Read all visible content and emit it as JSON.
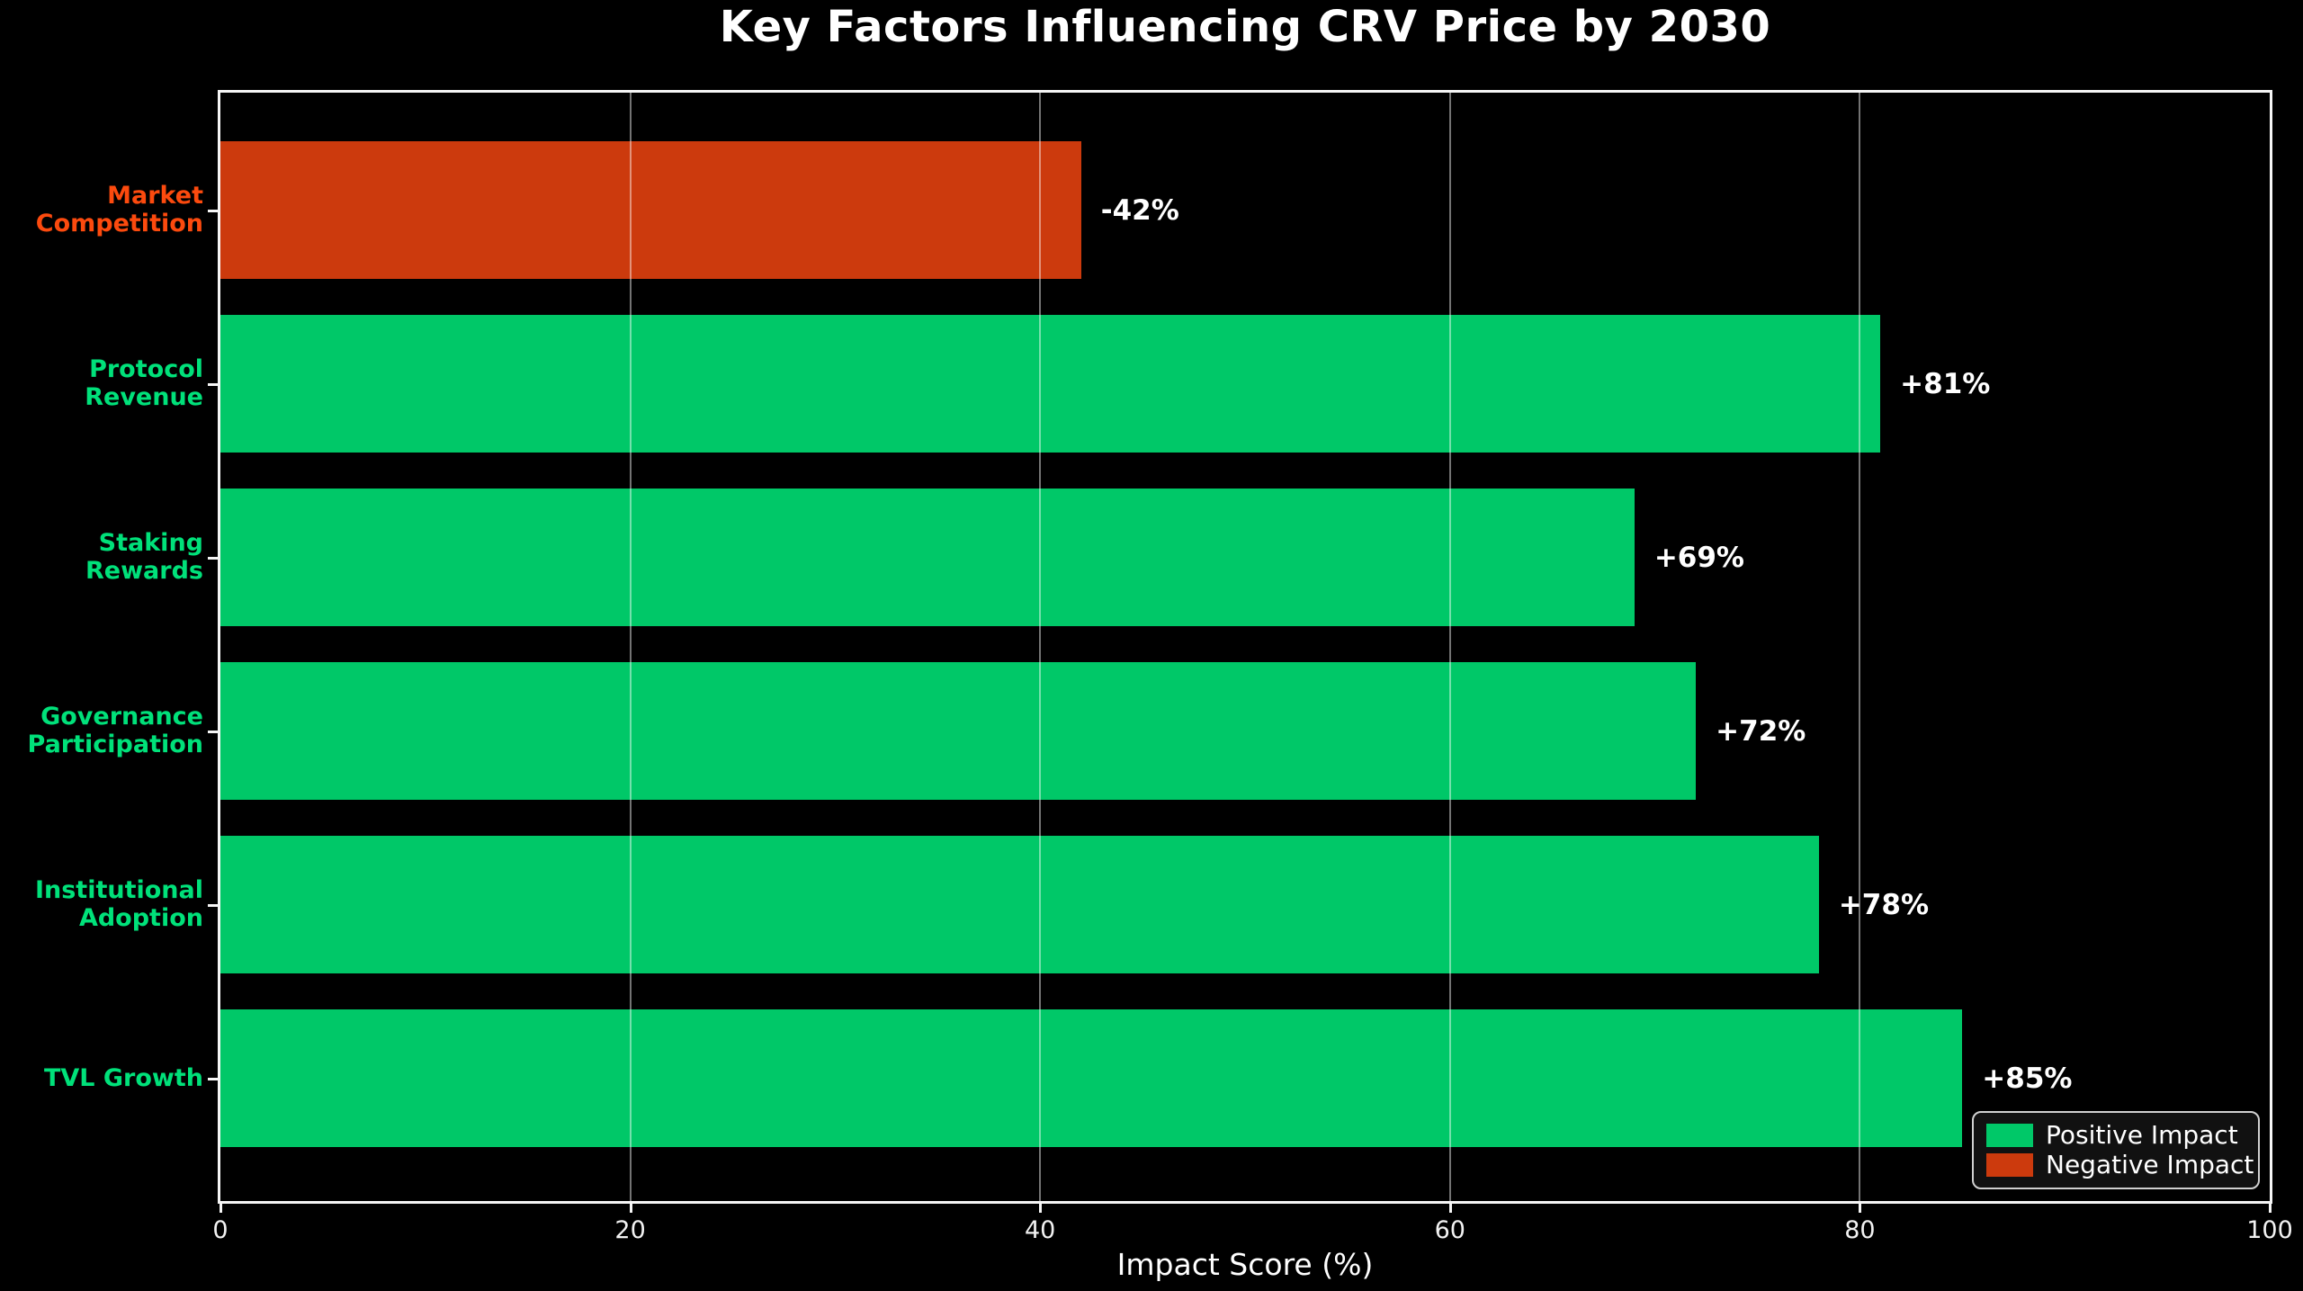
{
  "title": "Key Factors Influencing CRV Price by 2030",
  "colors": {
    "background": "#000000",
    "positive_bar": "#00c868",
    "negative_bar": "#cc3a0d",
    "positive_label": "#00e17a",
    "negative_label": "#fc4a0e",
    "value_label": "#ffffff",
    "spine": "#f5f5f5",
    "grid": "rgba(255,255,255,0.45)",
    "tick_label": "#f2f2f2"
  },
  "chart_data": {
    "type": "bar",
    "orientation": "horizontal",
    "title": "Key Factors Influencing CRV Price by 2030",
    "xlabel": "Impact Score (%)",
    "ylabel": "",
    "xlim": [
      0,
      100
    ],
    "xticks": [
      0,
      20,
      40,
      60,
      80,
      100
    ],
    "grid": true,
    "legend_position": "lower right",
    "categories": [
      "Market Competition",
      "Protocol Revenue",
      "Staking Rewards",
      "Governance Participation",
      "Institutional Adoption",
      "TVL Growth"
    ],
    "category_display": [
      "Market\nCompetition",
      "Protocol\nRevenue",
      "Staking Rewards",
      "Governance\nParticipation",
      "Institutional\nAdoption",
      "TVL Growth"
    ],
    "values": [
      -42,
      81,
      69,
      72,
      78,
      85
    ],
    "bar_labels": [
      "-42%",
      "+81%",
      "+69%",
      "+72%",
      "+78%",
      "+85%"
    ],
    "legend": [
      {
        "label": "Positive Impact",
        "color": "#00c868"
      },
      {
        "label": "Negative Impact",
        "color": "#cc3a0d"
      }
    ]
  }
}
